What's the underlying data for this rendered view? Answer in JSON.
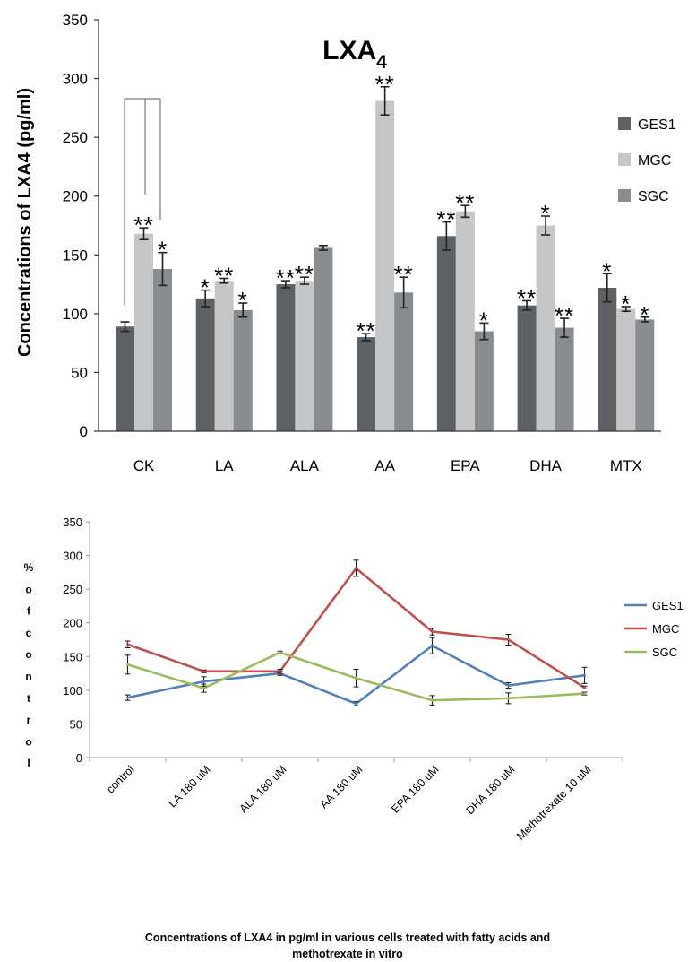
{
  "chart_data": [
    {
      "type": "bar",
      "title": "LXA",
      "title_subscript": "4",
      "ylabel": "Concentrations of LXA4 (pg/ml)",
      "xlabel": "",
      "ylim": [
        0,
        350
      ],
      "yticks": [
        0,
        50,
        100,
        150,
        200,
        250,
        300,
        350
      ],
      "grid": false,
      "legend_position": "right",
      "categories": [
        "CK",
        "LA",
        "ALA",
        "AA",
        "EPA",
        "DHA",
        "MTX"
      ],
      "series": [
        {
          "name": "GES1",
          "color": "#5c6166",
          "values": [
            89,
            113,
            125,
            80,
            166,
            107,
            122
          ],
          "errors": [
            4,
            7,
            3,
            3,
            12,
            4,
            12
          ],
          "marks": [
            "",
            "*",
            "**",
            "**",
            "**",
            "**",
            "*"
          ]
        },
        {
          "name": "MGC",
          "color": "#c4c6c8",
          "values": [
            168,
            128,
            128,
            281,
            187,
            175,
            104
          ],
          "errors": [
            5,
            2,
            3,
            12,
            5,
            8,
            2
          ],
          "marks": [
            "**",
            "**",
            "**",
            "**",
            "**",
            "*",
            "*"
          ]
        },
        {
          "name": "SGC",
          "color": "#878c90",
          "values": [
            138,
            103,
            156,
            118,
            85,
            88,
            95
          ],
          "errors": [
            14,
            6,
            2,
            13,
            7,
            8,
            2
          ],
          "marks": [
            "*",
            "*",
            "",
            "**",
            "*",
            "**",
            "*"
          ]
        }
      ]
    },
    {
      "type": "line",
      "ylabel": "% of control",
      "xlabel": "Concentrations of LXA4 in pg/ml in various cells treated with fatty acids and methotrexate in vitro",
      "ylim": [
        0,
        350
      ],
      "yticks": [
        0,
        50,
        100,
        150,
        200,
        250,
        300,
        350
      ],
      "grid": false,
      "legend_position": "right",
      "categories": [
        "control",
        "LA 180 uM",
        "ALA 180 uM",
        "AA 180 uM",
        "EPA 180 uM",
        "DHA 180 uM",
        "Methotrexate 10 uM"
      ],
      "series": [
        {
          "name": "GES1",
          "color": "#4f81bd",
          "values": [
            89,
            113,
            125,
            80,
            166,
            107,
            122
          ],
          "errors": [
            4,
            7,
            3,
            3,
            12,
            4,
            12
          ]
        },
        {
          "name": "MGC",
          "color": "#c0504d",
          "values": [
            168,
            128,
            128,
            281,
            187,
            175,
            104
          ],
          "errors": [
            5,
            2,
            3,
            12,
            5,
            8,
            2
          ]
        },
        {
          "name": "SGC",
          "color": "#9bbb59",
          "values": [
            138,
            103,
            156,
            118,
            85,
            88,
            95
          ],
          "errors": [
            14,
            6,
            2,
            13,
            7,
            8,
            2
          ]
        }
      ]
    }
  ]
}
